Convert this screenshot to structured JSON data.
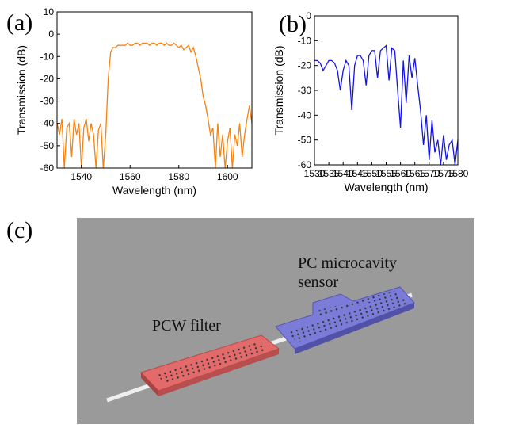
{
  "chart_data": [
    {
      "type": "line",
      "label": "(a)",
      "xlabel": "Wavelength (nm)",
      "ylabel": "Transmission (dB)",
      "color": "#f7820f",
      "xlim": [
        1530,
        1610
      ],
      "xticks": [
        1540,
        1560,
        1580,
        1600
      ],
      "ylim": [
        -60,
        10
      ],
      "yticks": [
        10,
        0,
        -10,
        -20,
        -30,
        -40,
        -50,
        -60
      ],
      "x": [
        1530,
        1531,
        1532,
        1533,
        1534,
        1535,
        1536,
        1537,
        1538,
        1539,
        1540,
        1541,
        1542,
        1543,
        1544,
        1545,
        1546,
        1547,
        1548,
        1549,
        1550,
        1551,
        1552,
        1553,
        1554,
        1555,
        1556,
        1557,
        1558,
        1559,
        1560,
        1561,
        1562,
        1563,
        1564,
        1565,
        1566,
        1567,
        1568,
        1569,
        1570,
        1571,
        1572,
        1573,
        1574,
        1575,
        1576,
        1577,
        1578,
        1579,
        1580,
        1581,
        1582,
        1583,
        1584,
        1585,
        1586,
        1587,
        1588,
        1589,
        1590,
        1591,
        1592,
        1593,
        1594,
        1595,
        1596,
        1597,
        1598,
        1599,
        1600,
        1601,
        1602,
        1603,
        1604,
        1605,
        1606,
        1607,
        1608,
        1609,
        1610
      ],
      "values": [
        -40,
        -45,
        -38,
        -60,
        -42,
        -40,
        -55,
        -38,
        -45,
        -40,
        -60,
        -42,
        -38,
        -48,
        -40,
        -45,
        -60,
        -43,
        -40,
        -60,
        -45,
        -20,
        -8,
        -6,
        -6,
        -5,
        -5,
        -5,
        -5,
        -4,
        -5,
        -5,
        -4,
        -4,
        -5,
        -4,
        -4,
        -4,
        -5,
        -4,
        -4,
        -5,
        -4,
        -4,
        -5,
        -4,
        -5,
        -5,
        -4,
        -5,
        -6,
        -5,
        -7,
        -6,
        -5,
        -8,
        -6,
        -10,
        -15,
        -20,
        -28,
        -32,
        -38,
        -45,
        -42,
        -60,
        -40,
        -55,
        -45,
        -60,
        -48,
        -42,
        -60,
        -45,
        -50,
        -40,
        -55,
        -45,
        -38,
        -32,
        -40
      ]
    },
    {
      "type": "line",
      "label": "(b)",
      "xlabel": "Wavelength (nm)",
      "ylabel": "Transmission (dB)",
      "color": "#1414e6",
      "xlim": [
        1530,
        1580
      ],
      "xticks": [
        1530,
        1535,
        1540,
        1545,
        1550,
        1555,
        1560,
        1565,
        1570,
        1575,
        1580
      ],
      "ylim": [
        -60,
        0
      ],
      "yticks": [
        0,
        -10,
        -20,
        -30,
        -40,
        -50,
        -60
      ],
      "x": [
        1530,
        1531,
        1532,
        1533,
        1534,
        1535,
        1536,
        1537,
        1538,
        1539,
        1540,
        1541,
        1542,
        1543,
        1544,
        1545,
        1546,
        1547,
        1548,
        1549,
        1550,
        1551,
        1552,
        1553,
        1554,
        1555,
        1556,
        1557,
        1558,
        1559,
        1560,
        1561,
        1562,
        1563,
        1564,
        1565,
        1566,
        1567,
        1568,
        1569,
        1570,
        1571,
        1572,
        1573,
        1574,
        1575,
        1576,
        1577,
        1578,
        1579,
        1580
      ],
      "values": [
        -18,
        -18,
        -19,
        -22,
        -20,
        -18,
        -18,
        -19,
        -22,
        -30,
        -22,
        -18,
        -20,
        -38,
        -20,
        -16,
        -16,
        -18,
        -28,
        -16,
        -14,
        -14,
        -25,
        -14,
        -13,
        -12,
        -26,
        -13,
        -14,
        -30,
        -45,
        -18,
        -35,
        -16,
        -25,
        -17,
        -28,
        -38,
        -52,
        -40,
        -58,
        -42,
        -55,
        -50,
        -60,
        -48,
        -58,
        -52,
        -50,
        -60,
        -50
      ]
    }
  ],
  "diagram": {
    "label": "(c)",
    "filter_label": "PCW filter",
    "sensor_label": [
      "PC microcavity",
      "sensor"
    ]
  }
}
